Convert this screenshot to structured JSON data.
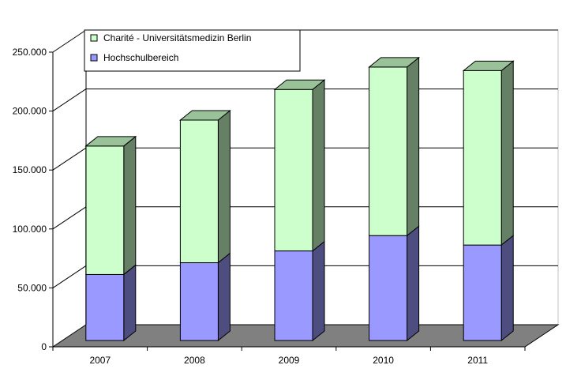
{
  "chart_data": {
    "type": "bar",
    "stacked": true,
    "three_d": true,
    "categories": [
      "2007",
      "2008",
      "2009",
      "2010",
      "2011"
    ],
    "series": [
      {
        "name": "Hochschulbereich",
        "color": "#9999ff",
        "side_color": "#4d4d80",
        "top_color": "#7f7fcf",
        "values": [
          56000,
          66000,
          76000,
          89000,
          81000
        ]
      },
      {
        "name": "Charité - Universitätsmedizin Berlin",
        "color": "#ccffcc",
        "side_color": "#668066",
        "top_color": "#99c299",
        "values": [
          109000,
          121000,
          137000,
          143000,
          148000
        ]
      }
    ],
    "ylim": [
      0,
      250000
    ],
    "yticks": [
      {
        "value": 0,
        "label": "0"
      },
      {
        "value": 50000,
        "label": "50.000"
      },
      {
        "value": 100000,
        "label": "100.000"
      },
      {
        "value": 150000,
        "label": "150.000"
      },
      {
        "value": 200000,
        "label": "200.000"
      },
      {
        "value": 250000,
        "label": "250.000"
      }
    ],
    "grid": true,
    "legend_position": "top-left",
    "floor_color": "#808080"
  }
}
